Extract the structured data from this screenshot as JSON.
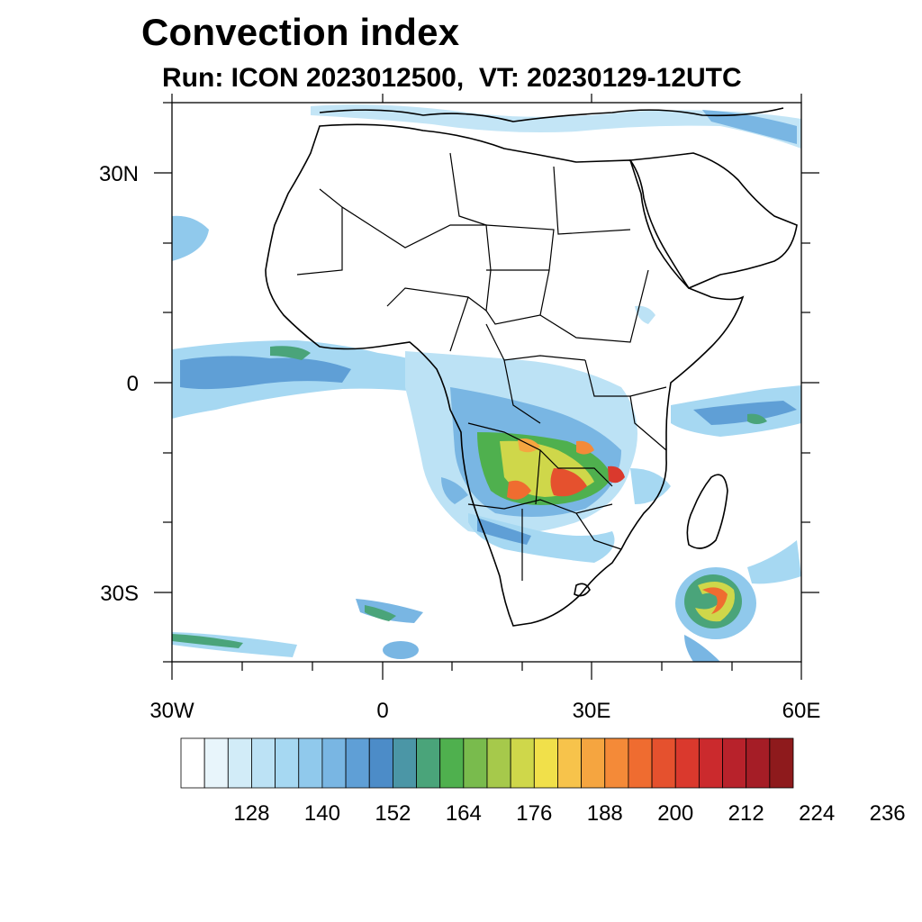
{
  "title": "Convection index",
  "subtitle": "Run: ICON 2023012500,  VT: 20230129-12UTC",
  "map": {
    "lat_labels": [
      {
        "lat": 30,
        "label": "30N"
      },
      {
        "lat": 0,
        "label": "0"
      },
      {
        "lat": -30,
        "label": "30S"
      }
    ],
    "lon_labels": [
      {
        "lon": -30,
        "label": "30W"
      },
      {
        "lon": 0,
        "label": "0"
      },
      {
        "lon": 30,
        "label": "30E"
      },
      {
        "lon": 60,
        "label": "60E"
      }
    ],
    "extent": {
      "lon_min": -30,
      "lon_max": 60,
      "lat_min": -40,
      "lat_max": 40
    }
  },
  "colorbar": {
    "levels": [
      "128",
      "140",
      "152",
      "164",
      "176",
      "188",
      "200",
      "212",
      "224",
      "236"
    ],
    "colors": [
      "#ffffff",
      "#e8f5fb",
      "#d2ecf8",
      "#bce2f5",
      "#a6d8f2",
      "#90c9ec",
      "#79b6e3",
      "#5f9fd6",
      "#4c8cc8",
      "#4b96a6",
      "#4aa47a",
      "#4fb04e",
      "#79bb4d",
      "#a6c94b",
      "#cfd74a",
      "#f1e04a",
      "#f7c34b",
      "#f5a540",
      "#f48a38",
      "#ef6c30",
      "#e5512e",
      "#da392d",
      "#cb2a2d",
      "#b8222b",
      "#a51d26",
      "#8e1a1c"
    ]
  }
}
